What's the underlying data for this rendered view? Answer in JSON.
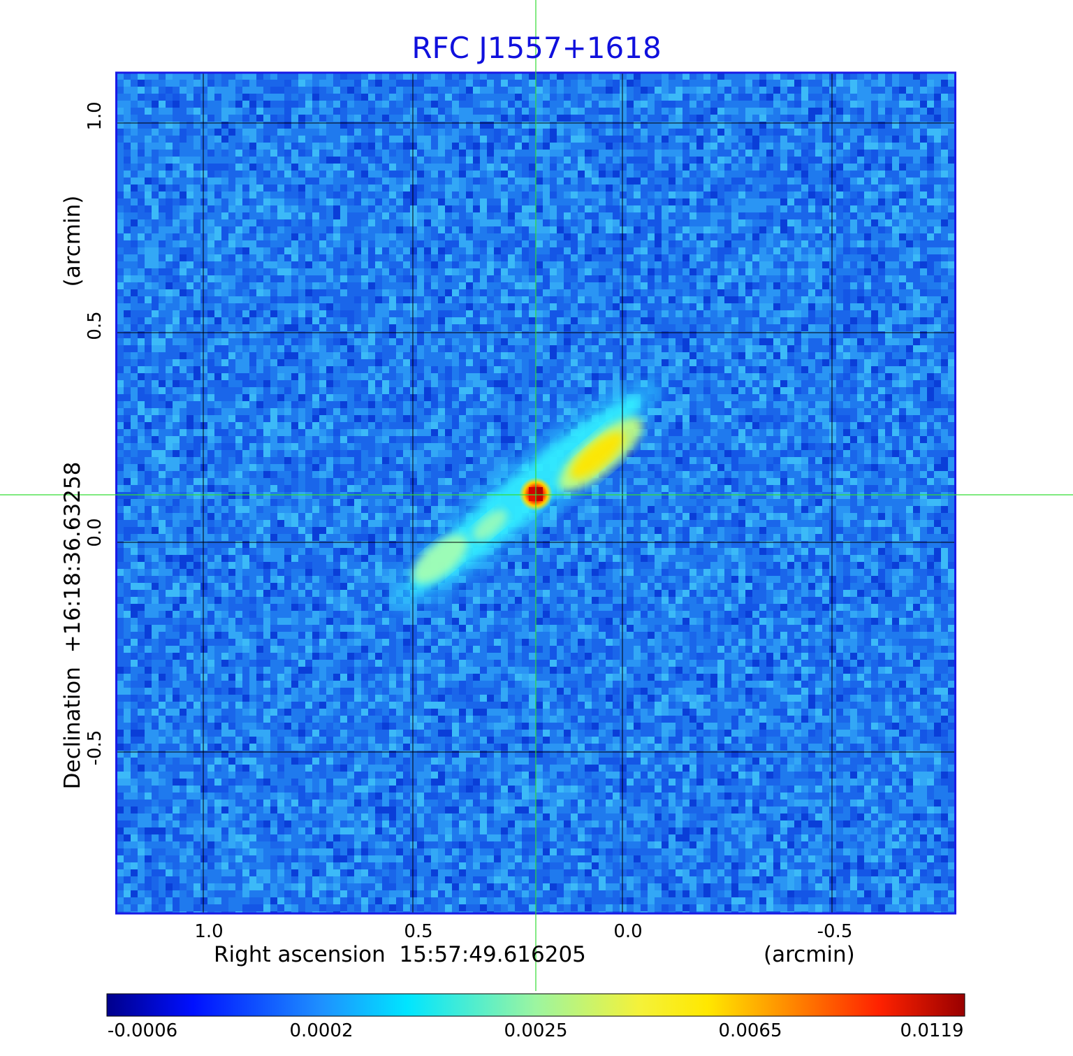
{
  "title": "RFC J1557+1618",
  "axes": {
    "x_label": "Right ascension  15:57:49.616205",
    "x_unit": "(arcmin)",
    "y_label": "Declination  +16:18:36.63258",
    "y_unit": "(arcmin)",
    "x_ticks": [
      "1.0",
      "0.5",
      "0.0",
      "-0.5"
    ],
    "y_ticks": [
      "1.0",
      "0.5",
      "0.0",
      "-0.5"
    ]
  },
  "colorbar": {
    "tick_labels": [
      "-0.0006",
      "0.0002",
      "0.0025",
      "0.0065",
      "0.0119"
    ],
    "colormap": "jet"
  },
  "colors": {
    "title": "#1010dd",
    "frame": "#1a1ae6",
    "crosshair": "#33dd33",
    "grid": "#000000",
    "background_map": "#1e78f0"
  },
  "image": {
    "content": "radio map of compact source with two-sided linear jet",
    "grid": "on",
    "crosshair": "on"
  }
}
